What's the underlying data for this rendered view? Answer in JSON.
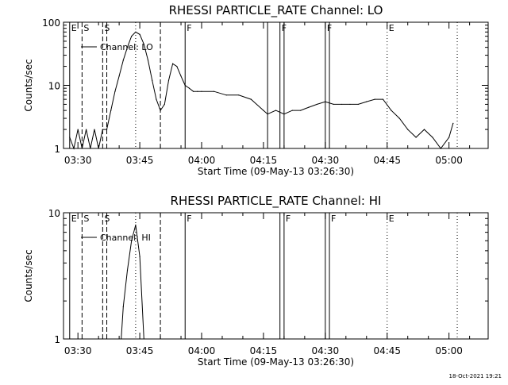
{
  "footer": {
    "timestamp": "18-Oct-2021 19:21"
  },
  "chart_data": [
    {
      "type": "line",
      "title": "RHESSI PARTICLE_RATE Channel: LO",
      "xlabel": "Start Time (09-May-13 03:26:30)",
      "ylabel": "Counts/sec",
      "yscale": "log",
      "ylim": [
        1,
        100
      ],
      "xlim": [
        "03:26:30",
        "05:09:30"
      ],
      "x_ticks": [
        "03:30",
        "03:45",
        "04:00",
        "04:15",
        "04:30",
        "04:45",
        "05:00"
      ],
      "y_ticks": [
        "1",
        "10",
        "100"
      ],
      "grid": false,
      "legend": {
        "position": "top-left",
        "entries": [
          "Channel: LO"
        ]
      },
      "series": [
        {
          "name": "Channel: LO",
          "x": [
            "03:28",
            "03:29",
            "03:30",
            "03:31",
            "03:32",
            "03:33",
            "03:34",
            "03:35",
            "03:36",
            "03:37",
            "03:38",
            "03:39",
            "03:40",
            "03:41",
            "03:42",
            "03:43",
            "03:44",
            "03:45",
            "03:46",
            "03:47",
            "03:48",
            "03:49",
            "03:50",
            "03:51",
            "03:52",
            "03:53",
            "03:54",
            "03:55",
            "03:56",
            "03:57",
            "03:58",
            "03:59",
            "04:00",
            "04:03",
            "04:06",
            "04:09",
            "04:12",
            "04:15",
            "04:16",
            "04:18",
            "04:20",
            "04:22",
            "04:24",
            "04:26",
            "04:28",
            "04:30",
            "04:32",
            "04:34",
            "04:36",
            "04:38",
            "04:40",
            "04:42",
            "04:44",
            "04:46",
            "04:48",
            "04:50",
            "04:52",
            "04:54",
            "04:56",
            "04:58",
            "05:00",
            "05:01"
          ],
          "values": [
            1.5,
            1,
            2,
            1,
            2,
            1,
            2,
            1,
            2,
            2,
            4,
            8,
            14,
            25,
            40,
            60,
            70,
            64,
            45,
            25,
            12,
            6,
            4,
            5,
            12,
            22,
            20,
            14,
            10,
            9,
            8,
            8,
            8,
            8,
            7,
            7,
            6,
            4,
            3.5,
            4,
            3.5,
            4,
            4,
            4.5,
            5,
            5.5,
            5,
            5,
            5,
            5,
            5.5,
            6,
            6,
            4,
            3,
            2,
            1.5,
            2,
            1.5,
            1,
            1.5,
            2.5
          ]
        }
      ],
      "markers": [
        {
          "label": "E",
          "time": "03:28",
          "style": "solid"
        },
        {
          "label": "S",
          "time": "03:31",
          "style": "dashed"
        },
        {
          "label": "S",
          "time": "03:36",
          "style": "dashed"
        },
        {
          "label": "",
          "time": "03:37",
          "style": "dashed"
        },
        {
          "label": "",
          "time": "03:44",
          "style": "dotted"
        },
        {
          "label": "",
          "time": "03:50",
          "style": "dashed"
        },
        {
          "label": "F",
          "time": "03:56",
          "style": "solid"
        },
        {
          "label": "",
          "time": "04:16",
          "style": "solid"
        },
        {
          "label": "F",
          "time": "04:19",
          "style": "solid"
        },
        {
          "label": "",
          "time": "04:20",
          "style": "solid"
        },
        {
          "label": "F",
          "time": "04:30",
          "style": "solid"
        },
        {
          "label": "",
          "time": "04:31",
          "style": "solid"
        },
        {
          "label": "E",
          "time": "04:45",
          "style": "dotted"
        },
        {
          "label": "",
          "time": "05:02",
          "style": "dotted"
        }
      ]
    },
    {
      "type": "line",
      "title": "RHESSI PARTICLE_RATE Channel: HI",
      "xlabel": "Start Time (09-May-13 03:26:30)",
      "ylabel": "Counts/sec",
      "yscale": "log",
      "ylim": [
        1,
        10
      ],
      "xlim": [
        "03:26:30",
        "05:09:30"
      ],
      "x_ticks": [
        "03:30",
        "03:45",
        "04:00",
        "04:15",
        "04:30",
        "04:45",
        "05:00"
      ],
      "y_ticks": [
        "1",
        "10"
      ],
      "grid": false,
      "legend": {
        "position": "top-left",
        "entries": [
          "Channel: HI"
        ]
      },
      "series": [
        {
          "name": "Channel: HI",
          "x": [
            "03:40:30",
            "03:41",
            "03:42",
            "03:43",
            "03:44",
            "03:45",
            "03:46"
          ],
          "values": [
            1,
            1.8,
            3.5,
            6,
            8,
            4.5,
            1
          ]
        }
      ],
      "markers": [
        {
          "label": "E",
          "time": "03:28",
          "style": "solid"
        },
        {
          "label": "S",
          "time": "03:31",
          "style": "dashed"
        },
        {
          "label": "S",
          "time": "03:36",
          "style": "dashed"
        },
        {
          "label": "",
          "time": "03:37",
          "style": "dashed"
        },
        {
          "label": "",
          "time": "03:44",
          "style": "dotted"
        },
        {
          "label": "",
          "time": "03:50",
          "style": "dashed"
        },
        {
          "label": "F",
          "time": "03:56",
          "style": "solid"
        },
        {
          "label": "",
          "time": "04:19",
          "style": "solid"
        },
        {
          "label": "F",
          "time": "04:20",
          "style": "solid"
        },
        {
          "label": "",
          "time": "04:30",
          "style": "solid"
        },
        {
          "label": "F",
          "time": "04:31",
          "style": "solid"
        },
        {
          "label": "E",
          "time": "04:45",
          "style": "dotted"
        },
        {
          "label": "",
          "time": "05:02",
          "style": "dotted"
        }
      ]
    }
  ]
}
